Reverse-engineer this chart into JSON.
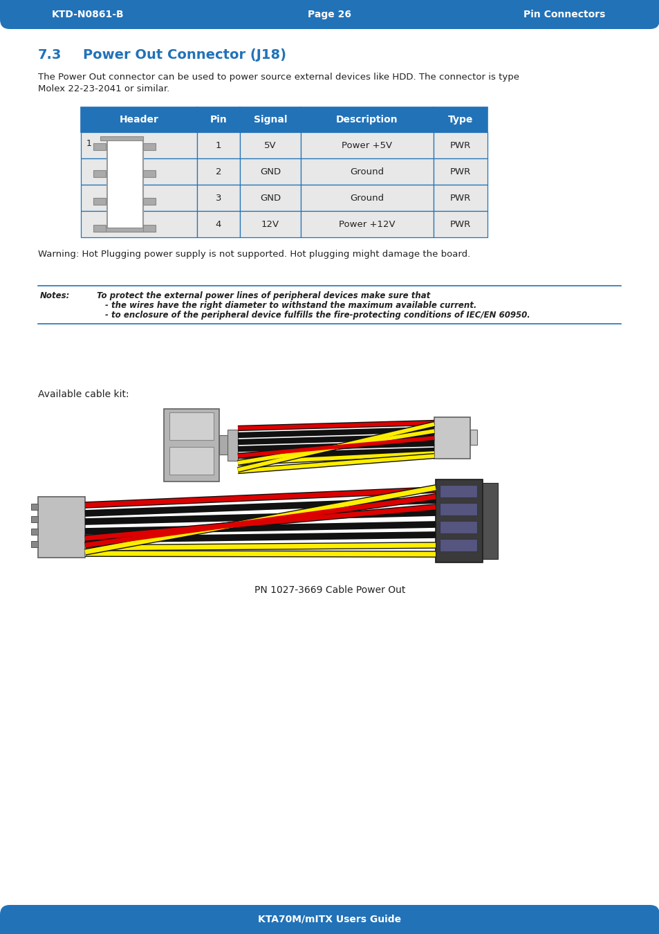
{
  "header_bg": "#2272B8",
  "header_text_color": "#ffffff",
  "page_bg": "#ffffff",
  "top_bar_text_left": "KTD-N0861-B",
  "top_bar_text_center": "Page 26",
  "top_bar_text_right": "Pin Connectors",
  "bottom_bar_text": "KTA70M/mITX Users Guide",
  "section_title_num": "7.3",
  "section_title_text": "Power Out Connector (J18)",
  "section_title_color": "#2272B8",
  "body_text_line1": "The Power Out connector can be used to power source external devices like HDD. The connector is type",
  "body_text_line2": "Molex 22-23-2041 or similar.",
  "table_headers": [
    "Header",
    "Pin",
    "Signal",
    "Description",
    "Type"
  ],
  "table_rows": [
    [
      "",
      "1",
      "5V",
      "Power +5V",
      "PWR"
    ],
    [
      "",
      "2",
      "GND",
      "Ground",
      "PWR"
    ],
    [
      "",
      "3",
      "GND",
      "Ground",
      "PWR"
    ],
    [
      "",
      "4",
      "12V",
      "Power +12V",
      "PWR"
    ]
  ],
  "warning_text": "Warning: Hot Plugging power supply is not supported. Hot plugging might damage the board.",
  "notes_label": "Notes:",
  "notes_line1": "To protect the external power lines of peripheral devices make sure that",
  "notes_line2": "- the wires have the right diameter to withstand the maximum available current.",
  "notes_line3": "- to enclosure of the peripheral device fulfills the fire-protecting conditions of IEC/EN 60950.",
  "available_cable_text": "Available cable kit:",
  "caption_text": "PN 1027-3669 Cable Power Out",
  "table_header_bg": "#2272B8",
  "table_row_bg1": "#E8E8E8",
  "table_row_bg2": "#D8D8D8",
  "table_border_color": "#2272B8",
  "divider_color": "#2272B8",
  "text_color": "#222222"
}
